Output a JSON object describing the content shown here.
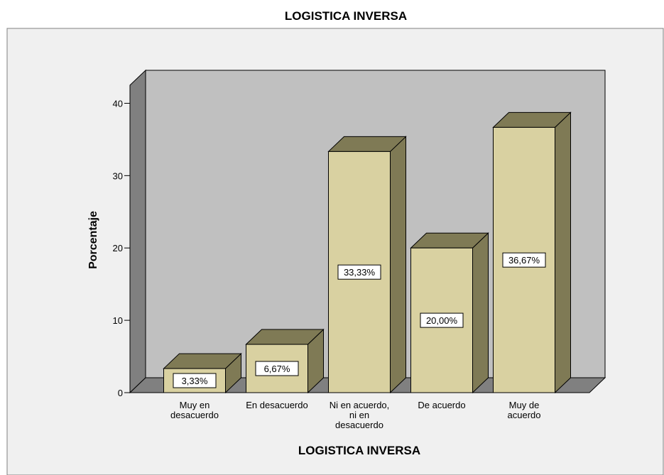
{
  "chart_data": {
    "type": "bar3d",
    "title": "LOGISTICA INVERSA",
    "x_label": "LOGISTICA INVERSA",
    "y_label": "Porcentaje",
    "categories": [
      "Muy en\ndesacuerdo",
      "En desacuerdo",
      "Ni en acuerdo,\nni en\ndesacuerdo",
      "De acuerdo",
      "Muy de\nacuerdo"
    ],
    "values": [
      3.33,
      6.67,
      33.33,
      20.0,
      36.67
    ],
    "value_labels": [
      "3,33%",
      "6,67%",
      "33,33%",
      "20,00%",
      "36,67%"
    ],
    "color": "#d9d1a1",
    "ylim": [
      0,
      42.5
    ],
    "yticks": [
      0,
      10,
      20,
      30,
      40
    ]
  }
}
